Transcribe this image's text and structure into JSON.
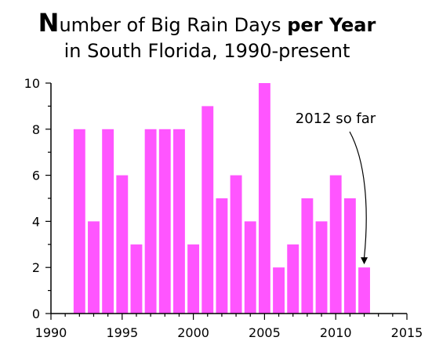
{
  "chart_data": {
    "type": "bar",
    "title": {
      "line1": [
        {
          "text": "N",
          "style": "big-n"
        },
        {
          "text": "umber of Big Rain Days ",
          "style": ""
        },
        {
          "text": "per Year",
          "style": "b"
        }
      ],
      "line2": "in South Florida, 1990-present"
    },
    "x": [
      1992,
      1993,
      1994,
      1995,
      1996,
      1997,
      1998,
      1999,
      2000,
      2001,
      2002,
      2003,
      2004,
      2005,
      2006,
      2007,
      2008,
      2009,
      2010,
      2011,
      2012
    ],
    "values": [
      8,
      4,
      8,
      6,
      3,
      8,
      8,
      8,
      3,
      9,
      5,
      6,
      4,
      10,
      2,
      3,
      5,
      4,
      6,
      5,
      2
    ],
    "xlim": [
      1990,
      2015
    ],
    "ylim": [
      0,
      10
    ],
    "x_ticks": [
      1990,
      1995,
      2000,
      2005,
      2010,
      2015
    ],
    "y_ticks": [
      0,
      2,
      4,
      6,
      8,
      10
    ],
    "bar_color": "#ff55ff",
    "grid": false,
    "annotation": {
      "text": "2012 so far",
      "x": 2012,
      "y": 2
    }
  }
}
